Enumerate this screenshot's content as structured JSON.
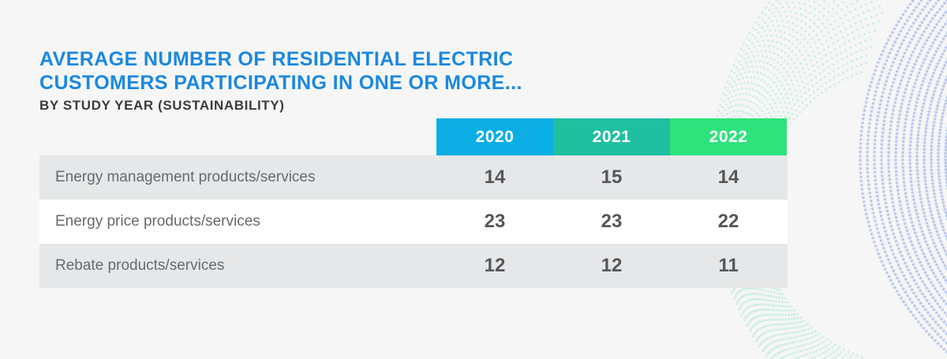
{
  "chart_data": {
    "type": "table",
    "title": "AVERAGE NUMBER OF RESIDENTIAL ELECTRIC CUSTOMERS PARTICIPATING IN ONE OR MORE...",
    "subtitle": "BY STUDY YEAR (SUSTAINABILITY)",
    "columns": [
      "2020",
      "2021",
      "2022"
    ],
    "column_colors": [
      "#0aaee4",
      "#1fbfa2",
      "#2ee27c"
    ],
    "rows": [
      {
        "label": "Energy management products/services",
        "values": [
          14,
          15,
          14
        ]
      },
      {
        "label": "Energy price products/services",
        "values": [
          23,
          23,
          22
        ]
      },
      {
        "label": "Rebate products/services",
        "values": [
          12,
          12,
          11
        ]
      }
    ]
  },
  "colors": {
    "title": "#1a88e0",
    "subtitle": "#3b3b3b",
    "row_shaded": "#e6e7e8",
    "row_white": "#ffffff",
    "background": "#f6f6f6",
    "decor_dots_green": "#8fe3c6",
    "decor_dots_blue": "#9fb0e8"
  }
}
